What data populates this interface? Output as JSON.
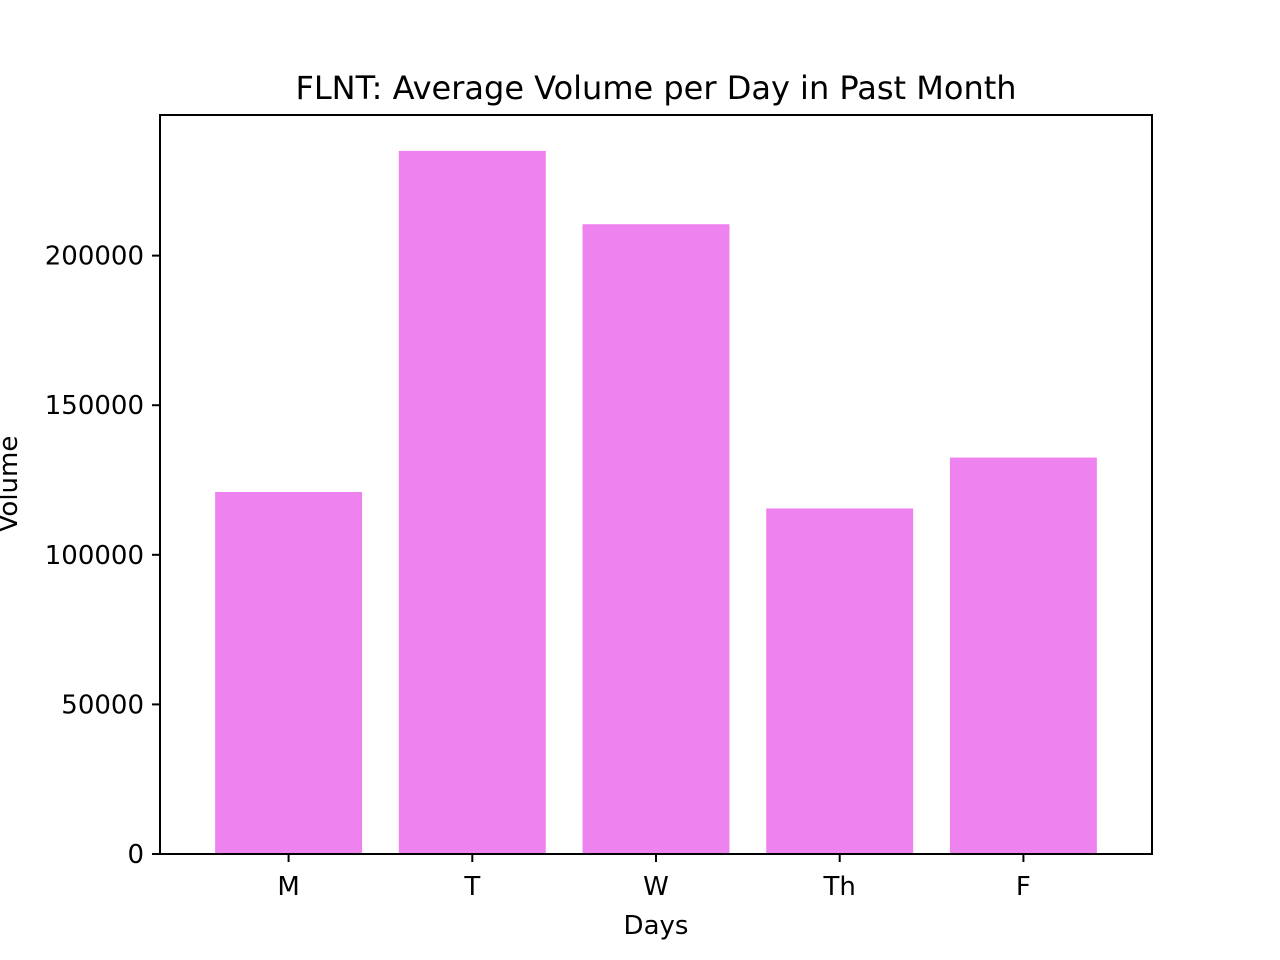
{
  "chart_data": {
    "type": "bar",
    "title": "FLNT: Average Volume per Day in Past Month",
    "xlabel": "Days",
    "ylabel": "Volume",
    "categories": [
      "M",
      "T",
      "W",
      "Th",
      "F"
    ],
    "values": [
      121000,
      235000,
      210500,
      115500,
      132500
    ],
    "ylim": [
      0,
      247000
    ],
    "yticks": [
      0,
      50000,
      100000,
      150000,
      200000
    ],
    "ytick_labels": [
      "0",
      "50000",
      "100000",
      "150000",
      "200000"
    ],
    "grid": false,
    "legend": "none",
    "bar_color": "#ee82ee"
  }
}
